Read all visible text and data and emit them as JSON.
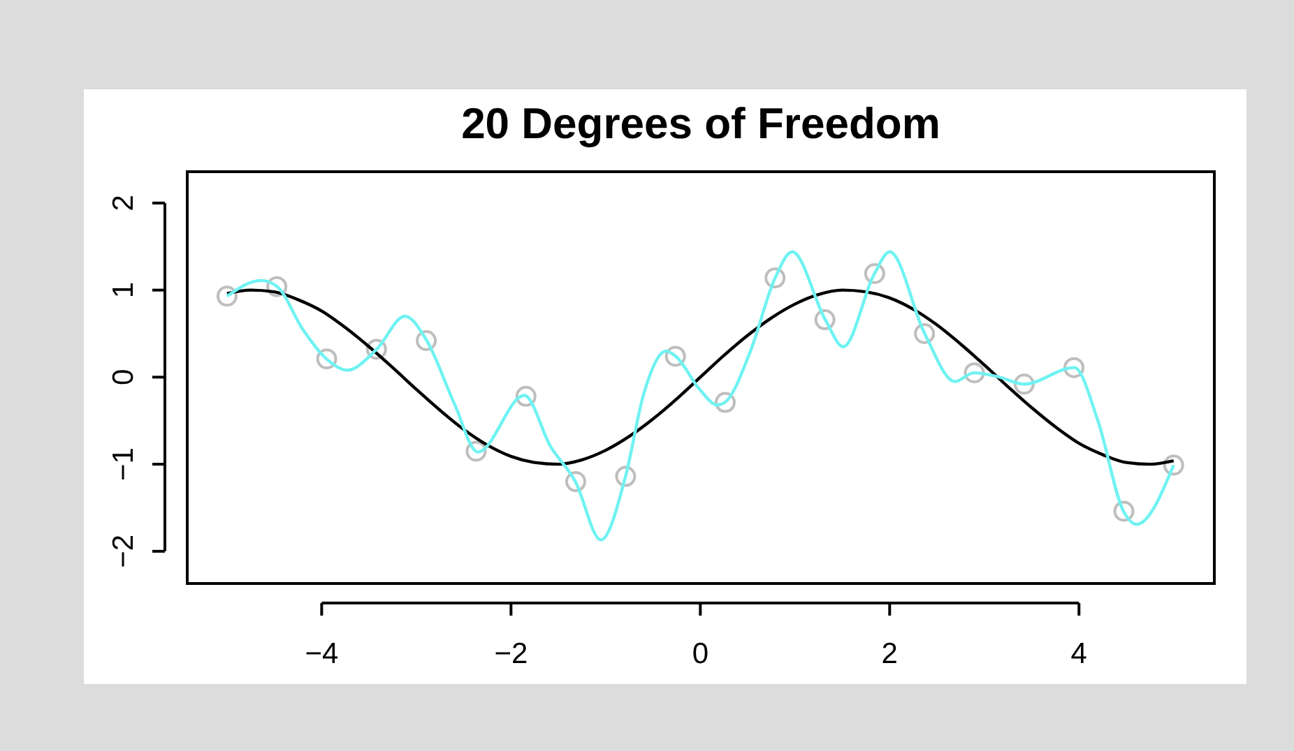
{
  "chart_data": {
    "type": "line",
    "title": "20 Degrees of Freedom",
    "xlim": [
      -5.42,
      5.43
    ],
    "xticks": [
      {
        "value": -4,
        "label": "−4"
      },
      {
        "value": -2,
        "label": "−2"
      },
      0,
      2,
      4
    ],
    "ylim": [
      -2.37,
      2.36
    ],
    "yticks": [
      {
        "value": -2,
        "label": "−2"
      },
      {
        "value": -1,
        "label": "−1"
      },
      0,
      1,
      2
    ],
    "grid": false,
    "series": [
      {
        "type": "scatter",
        "marker": "circle",
        "color": "#bebebe",
        "x": [
          -5,
          -4.474,
          -3.947,
          -3.421,
          -2.895,
          -2.368,
          -1.842,
          -1.316,
          -0.789,
          -0.263,
          0.263,
          0.789,
          1.316,
          1.842,
          2.368,
          2.895,
          3.421,
          3.947,
          4.474,
          5
        ],
        "values": [
          0.93,
          1.04,
          0.21,
          0.32,
          0.42,
          -0.85,
          -0.22,
          -1.2,
          -1.14,
          0.24,
          -0.29,
          1.14,
          0.66,
          1.19,
          0.5,
          0.05,
          -0.08,
          0.11,
          -1.54,
          -1.01
        ]
      },
      {
        "color": "#000000",
        "x": [
          -5,
          -4.75,
          -4.5,
          -4.25,
          -4,
          -3.75,
          -3.5,
          -3.25,
          -3,
          -2.75,
          -2.5,
          -2.25,
          -2,
          -1.75,
          -1.5,
          -1.25,
          -1,
          -0.75,
          -0.5,
          -0.25,
          0,
          0.25,
          0.5,
          0.75,
          1,
          1.25,
          1.5,
          1.75,
          2,
          2.25,
          2.5,
          2.75,
          3,
          3.25,
          3.5,
          3.75,
          4,
          4.25,
          4.5,
          4.75,
          5
        ],
        "values": [
          0.96,
          1.0,
          0.98,
          0.89,
          0.76,
          0.57,
          0.35,
          0.11,
          -0.14,
          -0.38,
          -0.6,
          -0.78,
          -0.91,
          -0.98,
          -1.0,
          -0.95,
          -0.84,
          -0.68,
          -0.48,
          -0.25,
          0,
          0.25,
          0.48,
          0.68,
          0.84,
          0.95,
          1.0,
          0.98,
          0.91,
          0.78,
          0.6,
          0.38,
          0.14,
          -0.11,
          -0.35,
          -0.57,
          -0.76,
          -0.89,
          -0.98,
          -1.0,
          -0.96
        ]
      },
      {
        "color": "#6ff2f2",
        "x": [
          -5,
          -4.64,
          -4.47,
          -4.2,
          -3.95,
          -3.73,
          -3.42,
          -3.12,
          -2.89,
          -2.6,
          -2.35,
          -1.86,
          -1.58,
          -1.32,
          -1.05,
          -0.79,
          -0.6,
          -0.36,
          -0.26,
          0,
          0.18,
          0.26,
          0.53,
          0.79,
          0.97,
          1.32,
          1.51,
          1.84,
          2.0,
          2.37,
          2.69,
          2.89,
          3.16,
          3.42,
          3.95,
          4.2,
          4.47,
          4.61,
          5
        ],
        "values": [
          0.93,
          1.11,
          1.04,
          0.55,
          0.21,
          0.08,
          0.32,
          0.7,
          0.42,
          -0.3,
          -0.86,
          -0.21,
          -0.8,
          -1.2,
          -1.87,
          -1.14,
          -0.2,
          0.3,
          0.24,
          -0.15,
          -0.32,
          -0.29,
          0.3,
          1.14,
          1.44,
          0.66,
          0.35,
          1.19,
          1.44,
          0.5,
          -0.05,
          0.05,
          0.0,
          -0.08,
          0.11,
          -0.5,
          -1.54,
          -1.69,
          -1.01
        ]
      }
    ]
  }
}
